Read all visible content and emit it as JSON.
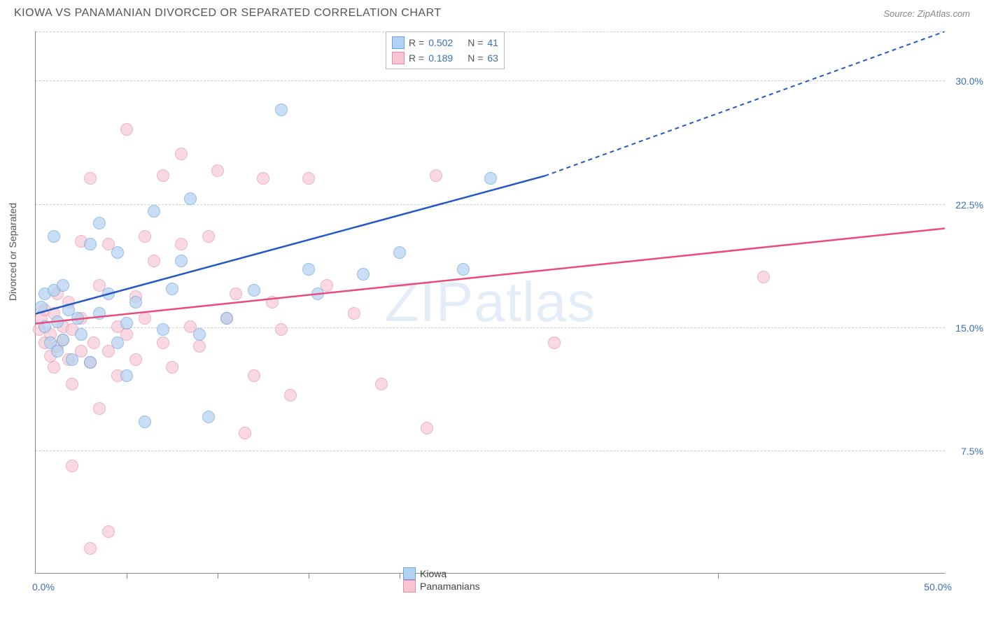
{
  "header": {
    "title": "KIOWA VS PANAMANIAN DIVORCED OR SEPARATED CORRELATION CHART",
    "source": "Source: ZipAtlas.com"
  },
  "chart": {
    "type": "scatter",
    "ylabel": "Divorced or Separated",
    "watermark": "ZIPatlas",
    "xlim": [
      0,
      50
    ],
    "ylim": [
      0,
      33
    ],
    "x_axis_labels": [
      {
        "pos": 0,
        "text": "0.0%",
        "color": "#3b6fb6"
      },
      {
        "pos": 50,
        "text": "50.0%",
        "color": "#3b6fb6"
      }
    ],
    "x_ticks": [
      5,
      10,
      15,
      20,
      22.5,
      37.5
    ],
    "y_gridlines": [
      {
        "val": 7.5,
        "label": "7.5%",
        "color": "#3b6fb6"
      },
      {
        "val": 15.0,
        "label": "15.0%",
        "color": "#3b6fb6"
      },
      {
        "val": 22.5,
        "label": "22.5%",
        "color": "#3b6fb6"
      },
      {
        "val": 30.0,
        "label": "30.0%",
        "color": "#3b6fb6"
      },
      {
        "val": 33.0,
        "label": "",
        "color": "#3b6fb6"
      }
    ],
    "series": [
      {
        "name": "Kiowa",
        "fill": "#b3d1f0",
        "stroke": "#6ba3df",
        "opacity": 0.7,
        "line_color": "#2358c5",
        "line_width": 2.5,
        "r_value": "0.502",
        "n_value": "41",
        "trend": {
          "x1": 0,
          "y1": 15.8,
          "x2_solid": 28,
          "y2_solid": 24.2,
          "x2_dash": 50,
          "y2_dash": 33.0
        },
        "points": [
          [
            0.3,
            16.2
          ],
          [
            0.5,
            17.0
          ],
          [
            0.5,
            15.0
          ],
          [
            0.8,
            14.0
          ],
          [
            1.0,
            20.5
          ],
          [
            1.0,
            17.2
          ],
          [
            1.2,
            15.3
          ],
          [
            1.2,
            13.5
          ],
          [
            1.5,
            14.2
          ],
          [
            1.5,
            17.5
          ],
          [
            1.8,
            16.0
          ],
          [
            2.0,
            13.0
          ],
          [
            2.3,
            15.5
          ],
          [
            2.5,
            14.5
          ],
          [
            3.0,
            20.0
          ],
          [
            3.0,
            12.8
          ],
          [
            3.5,
            15.8
          ],
          [
            3.5,
            21.3
          ],
          [
            4.0,
            17.0
          ],
          [
            4.5,
            14.0
          ],
          [
            4.5,
            19.5
          ],
          [
            5.0,
            15.2
          ],
          [
            5.0,
            12.0
          ],
          [
            5.5,
            16.5
          ],
          [
            6.0,
            9.2
          ],
          [
            6.5,
            22.0
          ],
          [
            7.0,
            14.8
          ],
          [
            7.5,
            17.3
          ],
          [
            8.0,
            19.0
          ],
          [
            8.5,
            22.8
          ],
          [
            9.0,
            14.5
          ],
          [
            9.5,
            9.5
          ],
          [
            10.5,
            15.5
          ],
          [
            12.0,
            17.2
          ],
          [
            13.5,
            28.2
          ],
          [
            15.0,
            18.5
          ],
          [
            15.5,
            17.0
          ],
          [
            18.0,
            18.2
          ],
          [
            20.0,
            19.5
          ],
          [
            23.5,
            18.5
          ],
          [
            25.0,
            24.0
          ]
        ]
      },
      {
        "name": "Panamanians",
        "fill": "#f7c5d2",
        "stroke": "#e88ba4",
        "opacity": 0.65,
        "line_color": "#e84c7c",
        "line_width": 2.5,
        "r_value": "0.189",
        "n_value": "63",
        "trend": {
          "x1": 0,
          "y1": 15.2,
          "x2_solid": 50,
          "y2_solid": 21.0
        },
        "points": [
          [
            0.2,
            14.8
          ],
          [
            0.3,
            15.5
          ],
          [
            0.5,
            14.0
          ],
          [
            0.5,
            16.0
          ],
          [
            0.8,
            13.2
          ],
          [
            0.8,
            14.5
          ],
          [
            1.0,
            15.8
          ],
          [
            1.0,
            12.5
          ],
          [
            1.2,
            13.8
          ],
          [
            1.2,
            17.0
          ],
          [
            1.5,
            14.2
          ],
          [
            1.5,
            15.0
          ],
          [
            1.8,
            13.0
          ],
          [
            1.8,
            16.5
          ],
          [
            2.0,
            11.5
          ],
          [
            2.0,
            14.8
          ],
          [
            2.0,
            6.5
          ],
          [
            2.5,
            13.5
          ],
          [
            2.5,
            15.5
          ],
          [
            2.5,
            20.2
          ],
          [
            3.0,
            1.5
          ],
          [
            3.0,
            12.8
          ],
          [
            3.0,
            24.0
          ],
          [
            3.2,
            14.0
          ],
          [
            3.5,
            17.5
          ],
          [
            3.5,
            10.0
          ],
          [
            4.0,
            13.5
          ],
          [
            4.0,
            20.0
          ],
          [
            4.0,
            2.5
          ],
          [
            4.5,
            15.0
          ],
          [
            4.5,
            12.0
          ],
          [
            5.0,
            14.5
          ],
          [
            5.0,
            27.0
          ],
          [
            5.5,
            13.0
          ],
          [
            5.5,
            16.8
          ],
          [
            6.0,
            15.5
          ],
          [
            6.0,
            20.5
          ],
          [
            6.5,
            19.0
          ],
          [
            7.0,
            14.0
          ],
          [
            7.0,
            24.2
          ],
          [
            7.5,
            12.5
          ],
          [
            8.0,
            20.0
          ],
          [
            8.0,
            25.5
          ],
          [
            8.5,
            15.0
          ],
          [
            9.0,
            13.8
          ],
          [
            9.5,
            20.5
          ],
          [
            10.0,
            24.5
          ],
          [
            10.5,
            15.5
          ],
          [
            11.0,
            17.0
          ],
          [
            11.5,
            8.5
          ],
          [
            12.0,
            12.0
          ],
          [
            12.5,
            24.0
          ],
          [
            13.0,
            16.5
          ],
          [
            13.5,
            14.8
          ],
          [
            14.0,
            10.8
          ],
          [
            15.0,
            24.0
          ],
          [
            16.0,
            17.5
          ],
          [
            17.5,
            15.8
          ],
          [
            19.0,
            11.5
          ],
          [
            21.5,
            8.8
          ],
          [
            22.0,
            24.2
          ],
          [
            28.5,
            14.0
          ],
          [
            40.0,
            18.0
          ]
        ]
      }
    ],
    "legend_top": {
      "r_label": "R =",
      "n_label": "N =",
      "value_color": "#3b6fb6",
      "label_color": "#555555"
    },
    "legend_bottom_labels": [
      "Kiowa",
      "Panamanians"
    ]
  },
  "colors": {
    "axis": "#888888",
    "grid": "#cccccc",
    "text": "#555555"
  }
}
